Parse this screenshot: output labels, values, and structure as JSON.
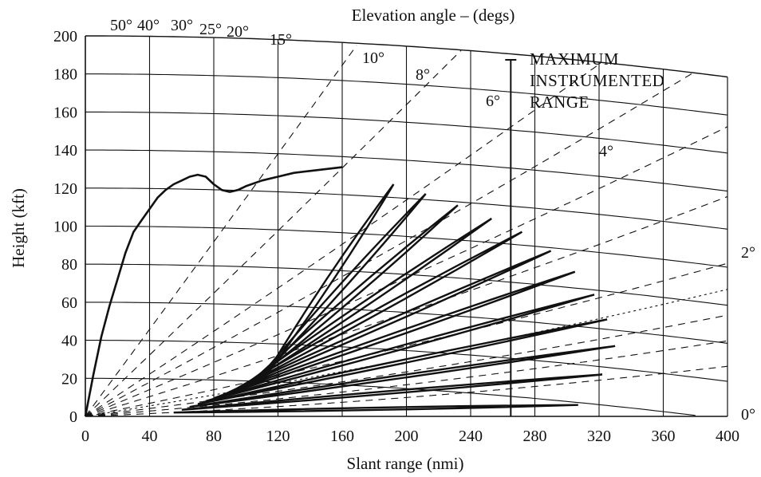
{
  "chart_data": {
    "type": "line",
    "title": "Elevation angle – (degs)",
    "xlabel": "Slant range (nmi)",
    "ylabel": "Height (kft)",
    "xlim": [
      0,
      400
    ],
    "ylim": [
      0,
      200
    ],
    "x_ticks": [
      0,
      40,
      80,
      120,
      160,
      200,
      240,
      280,
      320,
      360,
      400
    ],
    "y_ticks": [
      0,
      20,
      40,
      60,
      80,
      100,
      120,
      140,
      160,
      180,
      200
    ],
    "grid": true,
    "elevation_angles": [
      {
        "deg": 50,
        "label": "50°"
      },
      {
        "deg": 40,
        "label": "40°"
      },
      {
        "deg": 30,
        "label": "30°"
      },
      {
        "deg": 25,
        "label": "25°"
      },
      {
        "deg": 20,
        "label": "20°"
      },
      {
        "deg": 15,
        "label": "15°"
      },
      {
        "deg": 10,
        "label": "10°"
      },
      {
        "deg": 8,
        "label": "8°"
      },
      {
        "deg": 6,
        "label": "6°"
      },
      {
        "deg": 4,
        "label": "4°"
      },
      {
        "deg": 2,
        "label": "2°"
      },
      {
        "deg": 0,
        "label": "0°"
      }
    ],
    "annotation": {
      "lines": [
        "MAXIMUM",
        "INSTRUMENTED",
        "RANGE"
      ],
      "range_nmi": 265
    },
    "lobes": [
      {
        "tip_range": 307,
        "tip_height": 6
      },
      {
        "tip_range": 322,
        "tip_height": 22
      },
      {
        "tip_range": 330,
        "tip_height": 37
      },
      {
        "tip_range": 325,
        "tip_height": 51
      },
      {
        "tip_range": 317,
        "tip_height": 64
      },
      {
        "tip_range": 305,
        "tip_height": 76
      },
      {
        "tip_range": 290,
        "tip_height": 87
      },
      {
        "tip_range": 272,
        "tip_height": 97
      },
      {
        "tip_range": 253,
        "tip_height": 104
      },
      {
        "tip_range": 232,
        "tip_height": 111
      },
      {
        "tip_range": 212,
        "tip_height": 117
      },
      {
        "tip_range": 192,
        "tip_height": 122
      }
    ],
    "coverage_envelope": {
      "x": [
        0,
        5,
        10,
        15,
        20,
        25,
        30,
        35,
        40,
        45,
        50,
        55,
        60,
        65,
        70,
        75,
        80,
        85,
        90,
        95,
        100,
        110,
        120,
        130,
        140,
        150,
        160
      ],
      "y": [
        0,
        22,
        42,
        58,
        72,
        86,
        97,
        103,
        109,
        115,
        119,
        122,
        124,
        126,
        127,
        126,
        122,
        119,
        118,
        119,
        121,
        124,
        126,
        128,
        129,
        130,
        131
      ]
    }
  }
}
